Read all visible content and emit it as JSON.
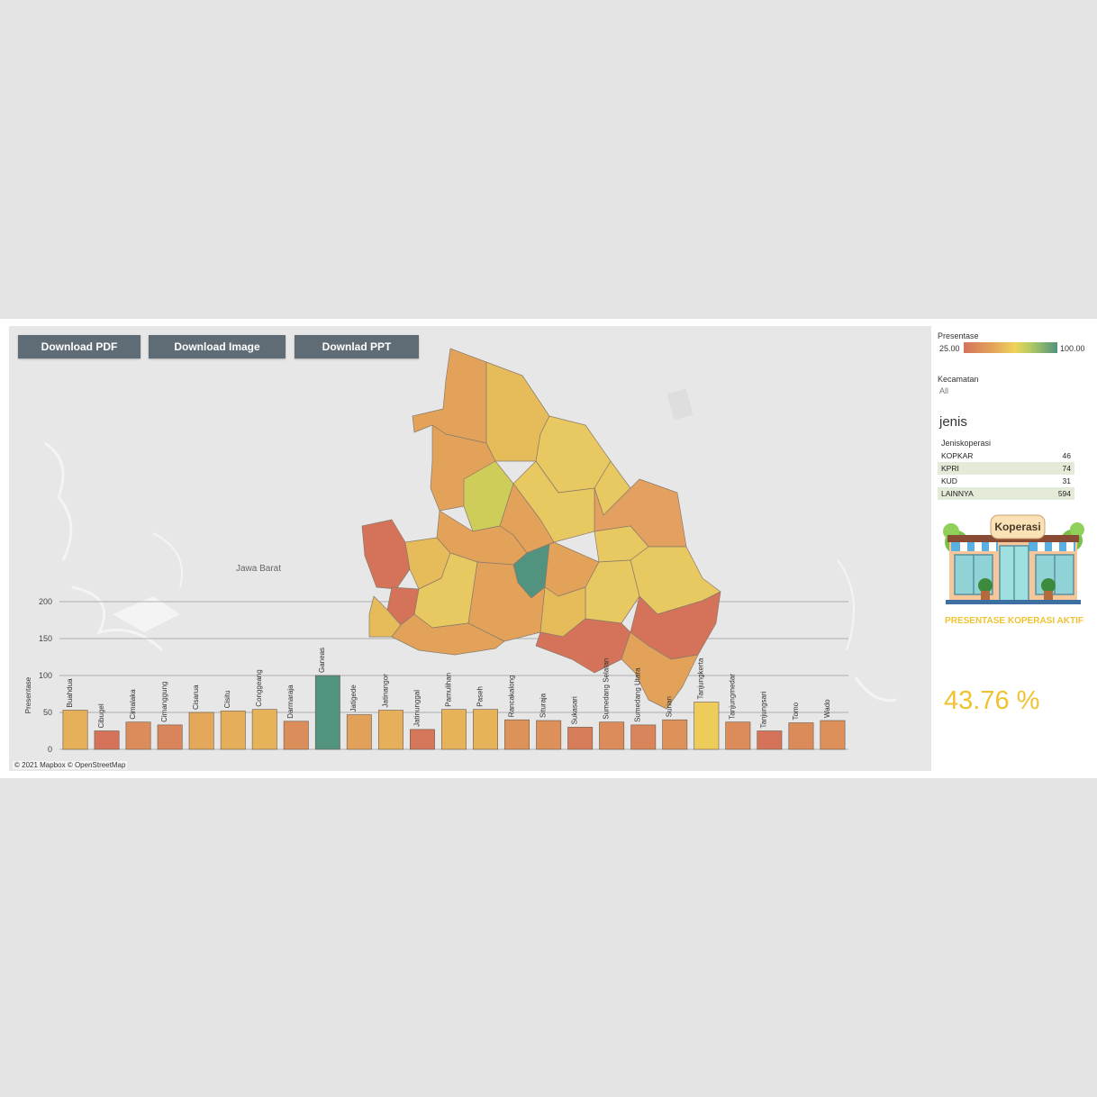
{
  "toolbar": {
    "download_pdf": "Download PDF",
    "download_image": "Download Image",
    "download_ppt": "Downlad PPT"
  },
  "map": {
    "region_label": "Jawa Barat",
    "attribution": "© 2021 Mapbox © OpenStreetMap"
  },
  "legend": {
    "title": "Presentase",
    "min": "25.00",
    "max": "100.00"
  },
  "filter": {
    "title": "Kecamatan",
    "value": "All"
  },
  "jenis": {
    "title": "jenis",
    "column_header": "Jeniskoperasi",
    "rows": [
      {
        "name": "KOPKAR",
        "value": "46"
      },
      {
        "name": "KPRI",
        "value": "74"
      },
      {
        "name": "KUD",
        "value": "31"
      },
      {
        "name": "LAINNYA",
        "value": "594"
      }
    ]
  },
  "store": {
    "sign": "Koperasi"
  },
  "kpi": {
    "caption": "PRESENTASE KOPERASI AKTIF",
    "value": "43.76 %"
  },
  "colors": {
    "low": "#d4735a",
    "mid": "#efd25a",
    "high": "#51937f",
    "kpi": "#f0c232",
    "button": "#5f6b75"
  },
  "chart_data": {
    "type": "bar",
    "ylabel": "Presentase",
    "yticks": [
      "0",
      "50",
      "100",
      "150",
      "200"
    ],
    "ylim": [
      0,
      200
    ],
    "categories": [
      "Buahdua",
      "Cibugel",
      "Cimalaka",
      "Cimanggung",
      "Cisarua",
      "Cisitu",
      "Conggeang",
      "Darmaraja",
      "Ganeas",
      "Jatigede",
      "Jatinangor",
      "Jatinunggal",
      "Pamulihan",
      "Paseh",
      "Rancakalong",
      "Situraja",
      "Sukasari",
      "Sumedang Selatan",
      "Sumedang Utara",
      "Surian",
      "Tanjungkerta",
      "Tanjungmedar",
      "Tanjungsari",
      "Tomo",
      "Wado"
    ],
    "values": [
      53,
      25,
      37,
      33,
      50,
      52,
      54,
      38,
      100,
      47,
      53,
      27,
      54,
      54,
      40,
      39,
      30,
      37,
      33,
      40,
      64,
      37,
      25,
      36,
      39
    ],
    "color_scale": {
      "min": 25,
      "max": 100
    }
  }
}
